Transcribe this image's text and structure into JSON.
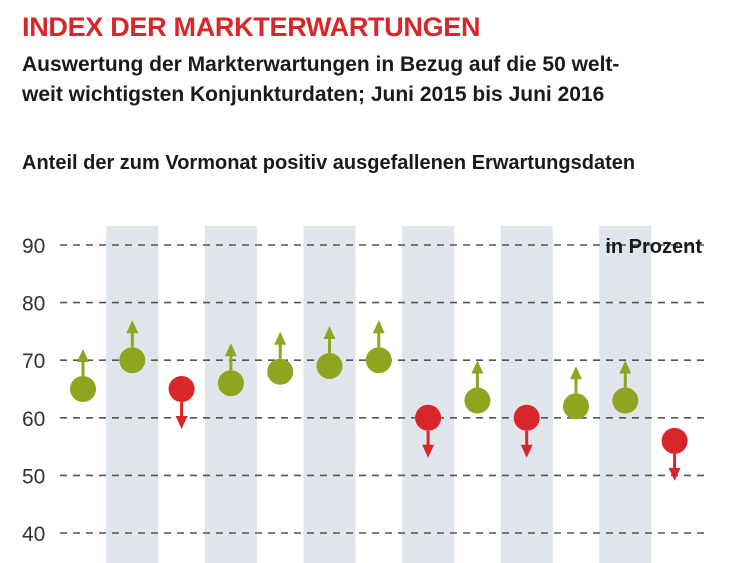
{
  "title": "INDEX DER MARKTERWARTUNGEN",
  "subtitle_line1": "Auswertung der Markterwartungen in Bezug auf die 50 welt-",
  "subtitle_line2": "weit wichtigsten Konjunkturdaten; Juni 2015 bis Juni 2016",
  "caption": "Anteil der zum Vormonat positiv ausgefallenen Erwartungsdaten",
  "colors": {
    "up": "#8fa51f",
    "down": "#d9262b",
    "band": "#dfe5ea",
    "grid": "#555555"
  },
  "chart_data": {
    "type": "scatter",
    "unit_label": "in Prozent",
    "ylim": [
      40,
      90
    ],
    "yticks": [
      90,
      80,
      70,
      60,
      50,
      40
    ],
    "grid": true,
    "periods": 13,
    "values": [
      65,
      70,
      65,
      66,
      68,
      69,
      70,
      60,
      63,
      60,
      62,
      63,
      56
    ],
    "direction": [
      "up",
      "up",
      "down",
      "up",
      "up",
      "up",
      "up",
      "down",
      "up",
      "down",
      "up",
      "up",
      "down"
    ]
  }
}
